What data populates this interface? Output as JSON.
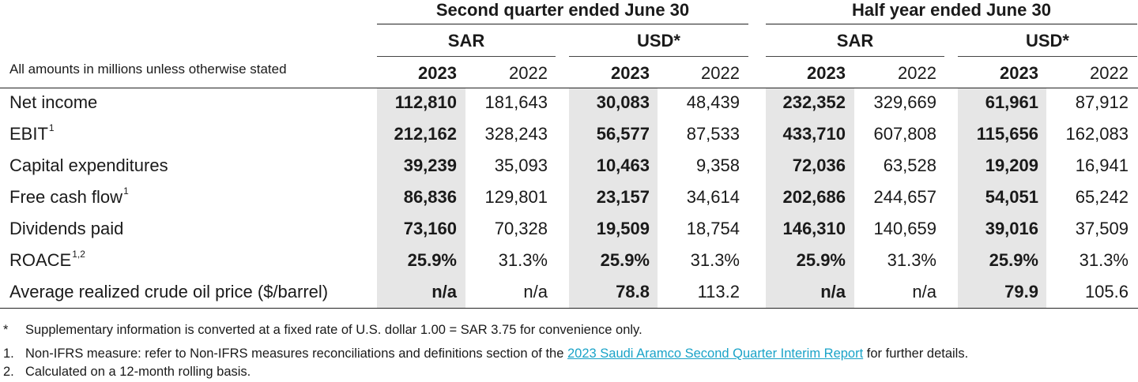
{
  "header": {
    "group_quarter": "Second quarter ended June 30",
    "group_half": "Half year ended June 30",
    "currencies": [
      "SAR",
      "USD*",
      "SAR",
      "USD*"
    ],
    "years": [
      "2023",
      "2022",
      "2023",
      "2022",
      "2023",
      "2022",
      "2023",
      "2022"
    ],
    "units_note": "All amounts in millions unless otherwise stated"
  },
  "rows": [
    {
      "label": "Net income",
      "sup": "",
      "values": [
        "112,810",
        "181,643",
        "30,083",
        "48,439",
        "232,352",
        "329,669",
        "61,961",
        "87,912"
      ]
    },
    {
      "label": "EBIT",
      "sup": "1",
      "values": [
        "212,162",
        "328,243",
        "56,577",
        "87,533",
        "433,710",
        "607,808",
        "115,656",
        "162,083"
      ]
    },
    {
      "label": "Capital expenditures",
      "sup": "",
      "values": [
        "39,239",
        "35,093",
        "10,463",
        "9,358",
        "72,036",
        "63,528",
        "19,209",
        "16,941"
      ]
    },
    {
      "label": "Free cash flow",
      "sup": "1",
      "values": [
        "86,836",
        "129,801",
        "23,157",
        "34,614",
        "202,686",
        "244,657",
        "54,051",
        "65,242"
      ]
    },
    {
      "label": "Dividends paid",
      "sup": "",
      "values": [
        "73,160",
        "70,328",
        "19,509",
        "18,754",
        "146,310",
        "140,659",
        "39,016",
        "37,509"
      ]
    },
    {
      "label": "ROACE",
      "sup": "1,2",
      "values": [
        "25.9%",
        "31.3%",
        "25.9%",
        "31.3%",
        "25.9%",
        "31.3%",
        "25.9%",
        "31.3%"
      ]
    },
    {
      "label": "Average realized crude oil price ($/barrel)",
      "sup": "",
      "values": [
        "n/a",
        "n/a",
        "78.8",
        "113.2",
        "n/a",
        "n/a",
        "79.9",
        "105.6"
      ]
    }
  ],
  "footnotes": {
    "star_marker": "*",
    "star_text": "Supplementary information is converted at a fixed rate of U.S. dollar 1.00 = SAR 3.75 for convenience only.",
    "one_marker": "1.",
    "one_before": "Non-IFRS measure: refer to Non-IFRS measures reconciliations and definitions section of the",
    "one_link": "2023 Saudi Aramco Second Quarter Interim Report",
    "one_after": "for further details.",
    "two_marker": "2.",
    "two_text": "Calculated on a 12-month rolling basis."
  },
  "colors": {
    "shade": "#e6e6e6",
    "link": "#1aa3c8"
  }
}
